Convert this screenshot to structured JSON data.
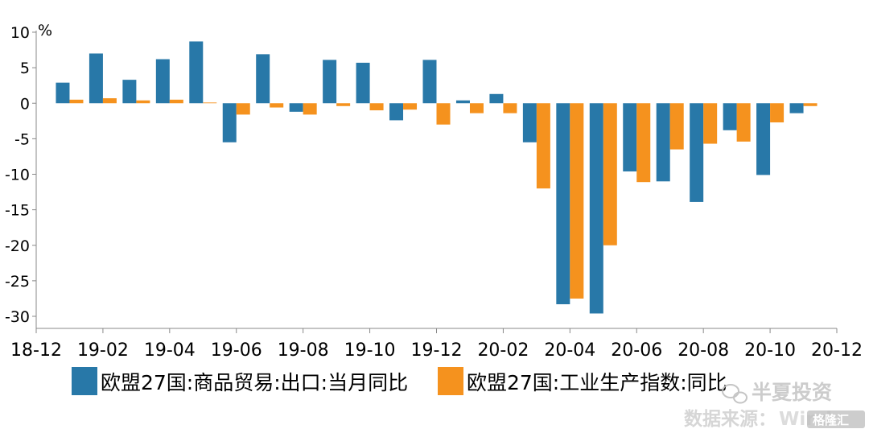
{
  "chart_data": {
    "type": "bar",
    "unit_label": "%",
    "ylim": [
      -30,
      10
    ],
    "y_ticks": [
      "10",
      "5",
      "0",
      "-5",
      "-10",
      "-15",
      "-20",
      "-25",
      "-30"
    ],
    "x_tick_labels": [
      "18-12",
      "19-02",
      "19-04",
      "19-06",
      "19-08",
      "19-10",
      "19-12",
      "20-02",
      "20-04",
      "20-06",
      "20-08",
      "20-10",
      "20-12"
    ],
    "categories": [
      "19-01",
      "19-02",
      "19-03",
      "19-04",
      "19-05",
      "19-06",
      "19-07",
      "19-08",
      "19-09",
      "19-10",
      "19-11",
      "19-12",
      "20-01",
      "20-02",
      "20-03",
      "20-04",
      "20-05",
      "20-06",
      "20-07",
      "20-08",
      "20-09",
      "20-10",
      "20-11"
    ],
    "series": [
      {
        "name": "欧盟27国:商品贸易:出口:当月同比",
        "color": "#2878a8",
        "values": [
          2.9,
          7.0,
          3.3,
          6.2,
          8.7,
          -5.5,
          6.9,
          -1.2,
          6.1,
          5.7,
          -2.4,
          6.1,
          0.4,
          1.3,
          -5.5,
          -28.3,
          -29.6,
          -9.6,
          -11.0,
          -13.9,
          -3.8,
          -10.1,
          -1.4
        ]
      },
      {
        "name": "欧盟27国:工业生产指数:同比",
        "color": "#f5921e",
        "values": [
          0.5,
          0.7,
          0.4,
          0.5,
          0.1,
          -1.6,
          -0.6,
          -1.6,
          -0.4,
          -1.0,
          -0.9,
          -3.0,
          -1.4,
          -1.4,
          -12.0,
          -27.5,
          -20.0,
          -11.1,
          -6.5,
          -5.7,
          -5.4,
          -2.7,
          -0.4
        ]
      }
    ],
    "grid": false,
    "legend_position": "bottom"
  },
  "watermark": {
    "brand": "半夏投资",
    "source": "数据来源：",
    "source_tail": "Wind",
    "badge": "格隆汇"
  }
}
